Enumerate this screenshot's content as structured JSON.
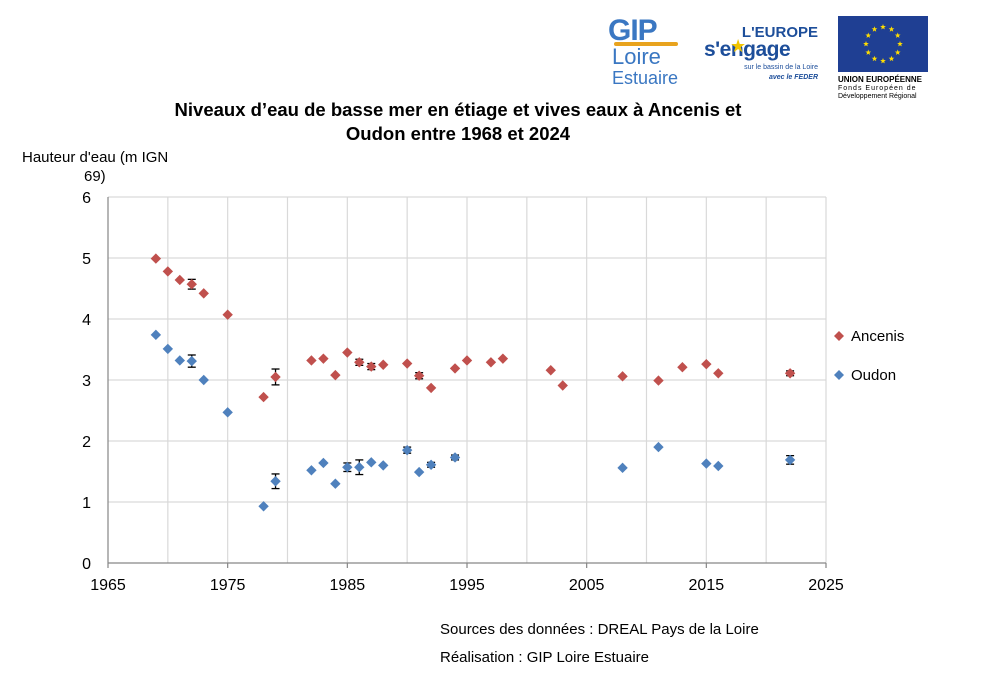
{
  "logos": {
    "gip": {
      "line1": "GIP",
      "line2": "Loire",
      "line3": "Estuaire"
    },
    "europe": {
      "line1": "L'EUROPE",
      "line2": "s'engage",
      "line3": "sur le bassin de la Loire",
      "line4": "avec le FEDER"
    },
    "eu": {
      "line1": "UNION EUROPÉENNE",
      "line2": "Fonds Européen de",
      "line3": "Développement Régional"
    }
  },
  "footer": {
    "sources": "Sources des données : DREAL Pays de la Loire",
    "realisation": "Réalisation : GIP Loire Estuaire"
  },
  "colors": {
    "ancenis": "#c0504d",
    "oudon": "#4f81bd",
    "grid": "#d9d9d9",
    "axis": "#868686"
  },
  "chart_data": {
    "type": "scatter",
    "title_line1": "Niveaux d’eau de basse mer en étiage et vives eaux à Ancenis et",
    "title_line2": "Oudon entre 1968 et 2024",
    "ylabel_line1": "Hauteur d'eau (m IGN",
    "ylabel_line2": "69)",
    "xlabel": "",
    "xlim": [
      1965,
      2025
    ],
    "ylim": [
      0,
      6
    ],
    "xticks": [
      1965,
      1975,
      1985,
      1995,
      2005,
      2015,
      2025
    ],
    "yticks": [
      0,
      1,
      2,
      3,
      4,
      5,
      6
    ],
    "x_minor_step": 5,
    "grid": true,
    "legend_position": "right",
    "series": [
      {
        "name": "Ancenis",
        "points": [
          {
            "x": 1969,
            "y": 4.99
          },
          {
            "x": 1970,
            "y": 4.78
          },
          {
            "x": 1971,
            "y": 4.64
          },
          {
            "x": 1972,
            "y": 4.57,
            "err": 0.08
          },
          {
            "x": 1973,
            "y": 4.42
          },
          {
            "x": 1975,
            "y": 4.07
          },
          {
            "x": 1978,
            "y": 2.72
          },
          {
            "x": 1979,
            "y": 3.05,
            "err": 0.13
          },
          {
            "x": 1982,
            "y": 3.32
          },
          {
            "x": 1983,
            "y": 3.35
          },
          {
            "x": 1984,
            "y": 3.08
          },
          {
            "x": 1985,
            "y": 3.45
          },
          {
            "x": 1986,
            "y": 3.29,
            "err": 0.05
          },
          {
            "x": 1987,
            "y": 3.22,
            "err": 0.05
          },
          {
            "x": 1988,
            "y": 3.25
          },
          {
            "x": 1990,
            "y": 3.27
          },
          {
            "x": 1991,
            "y": 3.07,
            "err": 0.05
          },
          {
            "x": 1992,
            "y": 2.87
          },
          {
            "x": 1994,
            "y": 3.19
          },
          {
            "x": 1995,
            "y": 3.32
          },
          {
            "x": 1997,
            "y": 3.29
          },
          {
            "x": 1998,
            "y": 3.35
          },
          {
            "x": 2002,
            "y": 3.16
          },
          {
            "x": 2003,
            "y": 2.91
          },
          {
            "x": 2008,
            "y": 3.06
          },
          {
            "x": 2011,
            "y": 2.99
          },
          {
            "x": 2013,
            "y": 3.21
          },
          {
            "x": 2015,
            "y": 3.26
          },
          {
            "x": 2016,
            "y": 3.11
          },
          {
            "x": 2022,
            "y": 3.11,
            "err": 0.04
          }
        ]
      },
      {
        "name": "Oudon",
        "points": [
          {
            "x": 1969,
            "y": 3.74
          },
          {
            "x": 1970,
            "y": 3.51
          },
          {
            "x": 1971,
            "y": 3.32
          },
          {
            "x": 1972,
            "y": 3.31,
            "err": 0.1
          },
          {
            "x": 1973,
            "y": 3.0
          },
          {
            "x": 1975,
            "y": 2.47
          },
          {
            "x": 1978,
            "y": 0.93
          },
          {
            "x": 1979,
            "y": 1.34,
            "err": 0.12
          },
          {
            "x": 1982,
            "y": 1.52
          },
          {
            "x": 1983,
            "y": 1.64
          },
          {
            "x": 1984,
            "y": 1.3
          },
          {
            "x": 1985,
            "y": 1.57,
            "err": 0.07
          },
          {
            "x": 1986,
            "y": 1.57,
            "err": 0.12
          },
          {
            "x": 1987,
            "y": 1.65
          },
          {
            "x": 1988,
            "y": 1.6
          },
          {
            "x": 1990,
            "y": 1.85,
            "err": 0.05
          },
          {
            "x": 1991,
            "y": 1.49
          },
          {
            "x": 1992,
            "y": 1.61,
            "err": 0.04
          },
          {
            "x": 1994,
            "y": 1.73,
            "err": 0.04
          },
          {
            "x": 2008,
            "y": 1.56
          },
          {
            "x": 2011,
            "y": 1.9
          },
          {
            "x": 2015,
            "y": 1.63
          },
          {
            "x": 2016,
            "y": 1.59
          },
          {
            "x": 2022,
            "y": 1.69,
            "err": 0.07
          }
        ]
      }
    ]
  }
}
